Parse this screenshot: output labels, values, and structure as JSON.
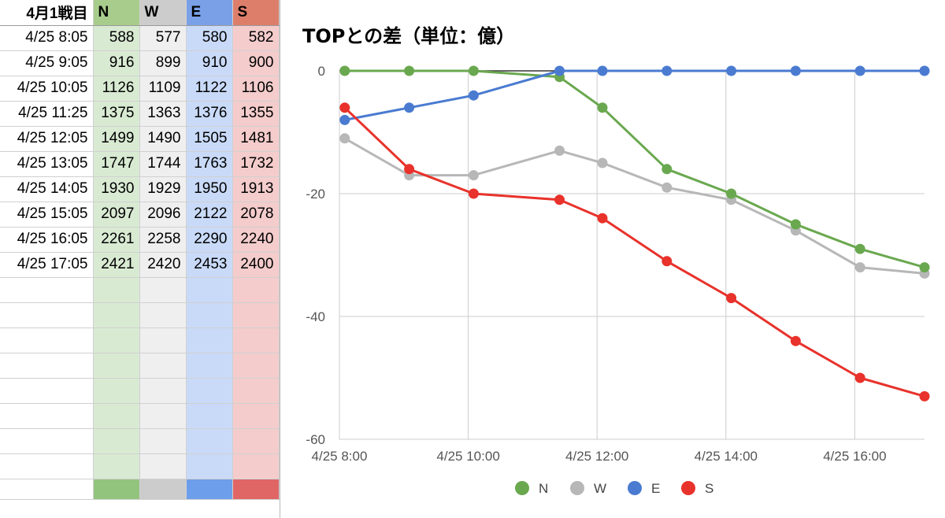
{
  "sheet": {
    "header": [
      "4月1戦目",
      "N",
      "W",
      "E",
      "S"
    ],
    "header_colors": [
      "#ffffff",
      "#a8cc8c",
      "#cccccc",
      "#7aa1e8",
      "#dd7e6b"
    ],
    "col_colors": [
      "#ffffff",
      "#d9ead3",
      "#efefef",
      "#c9daf8",
      "#f4cccc"
    ],
    "foot_colors": [
      "#ffffff",
      "#93c47d",
      "#cccccc",
      "#6d9eeb",
      "#e06666"
    ],
    "rows": [
      [
        "4/25 8:05",
        "588",
        "577",
        "580",
        "582"
      ],
      [
        "4/25 9:05",
        "916",
        "899",
        "910",
        "900"
      ],
      [
        "4/25 10:05",
        "1126",
        "1109",
        "1122",
        "1106"
      ],
      [
        "4/25 11:25",
        "1375",
        "1363",
        "1376",
        "1355"
      ],
      [
        "4/25 12:05",
        "1499",
        "1490",
        "1505",
        "1481"
      ],
      [
        "4/25 13:05",
        "1747",
        "1744",
        "1763",
        "1732"
      ],
      [
        "4/25 14:05",
        "1930",
        "1929",
        "1950",
        "1913"
      ],
      [
        "4/25 15:05",
        "2097",
        "2096",
        "2122",
        "2078"
      ],
      [
        "4/25 16:05",
        "2261",
        "2258",
        "2290",
        "2240"
      ],
      [
        "4/25 17:05",
        "2421",
        "2420",
        "2453",
        "2400"
      ]
    ],
    "empty_rows": 8
  },
  "chart_data": {
    "type": "line",
    "title": "TOPとの差（単位：億）",
    "xlabel": "",
    "ylabel": "",
    "x_ticks": [
      "4/25 8:00",
      "4/25 10:00",
      "4/25 12:00",
      "4/25 14:00",
      "4/25 16:00"
    ],
    "x_tick_hours": [
      8,
      10,
      12,
      14,
      16
    ],
    "y_ticks": [
      0,
      -20,
      -40,
      -60
    ],
    "ylim": [
      -60,
      0
    ],
    "xlim": [
      "4/25 8:00",
      "4/25 17:05"
    ],
    "x": [
      "4/25 8:05",
      "4/25 9:05",
      "4/25 10:05",
      "4/25 11:25",
      "4/25 12:05",
      "4/25 13:05",
      "4/25 14:05",
      "4/25 15:05",
      "4/25 16:05",
      "4/25 17:05"
    ],
    "x_hours": [
      8.083,
      9.083,
      10.083,
      11.417,
      12.083,
      13.083,
      14.083,
      15.083,
      16.083,
      17.083
    ],
    "series": [
      {
        "name": "N",
        "color": "#6aa84f",
        "values": [
          0,
          0,
          0,
          -1,
          -6,
          -16,
          -20,
          -25,
          -29,
          -32
        ]
      },
      {
        "name": "W",
        "color": "#b7b7b7",
        "values": [
          -11,
          -17,
          -17,
          -13,
          -15,
          -19,
          -21,
          -26,
          -32,
          -33
        ]
      },
      {
        "name": "E",
        "color": "#4a7bd1",
        "values": [
          -8,
          -6,
          -4,
          0,
          0,
          0,
          0,
          0,
          0,
          0
        ]
      },
      {
        "name": "S",
        "color": "#e8322b",
        "values": [
          -6,
          -16,
          -20,
          -21,
          -24,
          -31,
          -37,
          -44,
          -50,
          -53
        ]
      }
    ],
    "grid": true,
    "legend_position": "bottom"
  }
}
